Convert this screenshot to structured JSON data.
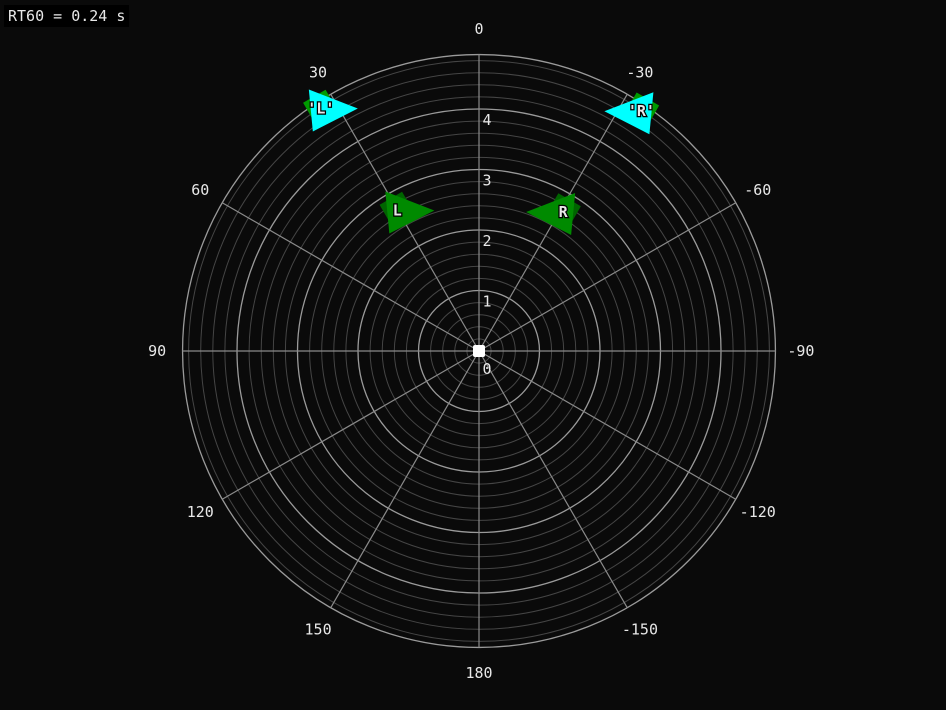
{
  "status": {
    "rt60_label": "RT60 = 0.24 s"
  },
  "chart_data": {
    "type": "polar",
    "angle_direction": "counterclockwise, 0 at top",
    "angle_ticks": [
      "0",
      "30",
      "60",
      "90",
      "120",
      "150",
      "180",
      "-150",
      "-120",
      "-90",
      "-60",
      "-30"
    ],
    "angle_tick_values": [
      0,
      30,
      60,
      90,
      120,
      150,
      180,
      -150,
      -120,
      -90,
      -60,
      -30
    ],
    "radial_ticks": [
      "0",
      "1",
      "2",
      "3",
      "4"
    ],
    "radial_max": 4.9,
    "minor_ring_step": 0.2,
    "listener": {
      "angle": 0,
      "distance": 0,
      "color": "#ffffff"
    },
    "speakers": [
      {
        "label": "L",
        "angle": 30,
        "distance": 2.7,
        "facing": "right",
        "color": "#008a00",
        "base_color": "#006400"
      },
      {
        "label": "R",
        "angle": -31,
        "distance": 2.7,
        "facing": "left",
        "color": "#008a00",
        "base_color": "#006400"
      },
      {
        "label": "'L'",
        "angle": 33,
        "distance": 4.8,
        "facing": "right",
        "color": "#00ffff",
        "base_color": "#009a00"
      },
      {
        "label": "'R'",
        "angle": -34,
        "distance": 4.8,
        "facing": "left",
        "color": "#00ffff",
        "base_color": "#009a00"
      }
    ],
    "colors": {
      "background": "#0a0a0a",
      "major_grid": "#9a9a9a",
      "minor_grid": "#454545",
      "spokes": "#8a8a8a"
    }
  }
}
